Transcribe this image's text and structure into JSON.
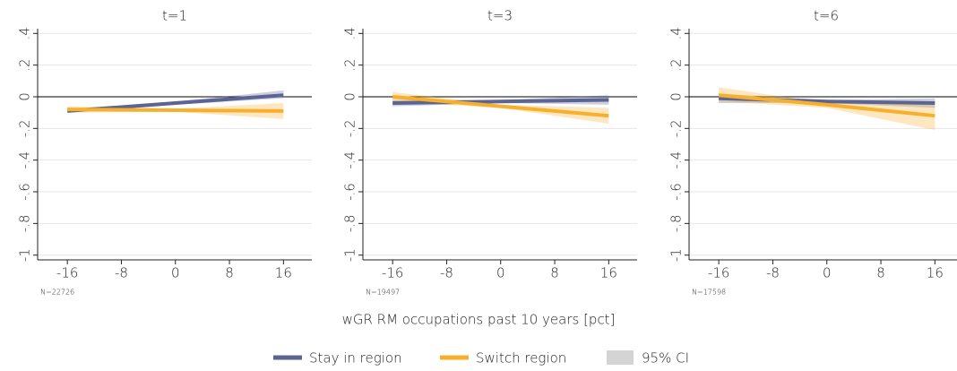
{
  "xlabel": "wGR RM occupations past 10 years [pct]",
  "ci_label": "95% CI",
  "ci_color": "#d4d4d4",
  "chart_data": [
    {
      "type": "line",
      "title": "t=1",
      "note": "N=22726",
      "x": [
        -16,
        0,
        16
      ],
      "xlim": [
        -20.4,
        20.2
      ],
      "xticks": [
        -16,
        -8,
        0,
        8,
        16
      ],
      "ylim": [
        -1.03,
        0.43
      ],
      "yticks": [
        {
          "value": -1,
          "label": "-1"
        },
        {
          "value": -0.8,
          "label": "-.8"
        },
        {
          "value": -0.6,
          "label": "-.6"
        },
        {
          "value": -0.4,
          "label": "-.4"
        },
        {
          "value": -0.2,
          "label": "-.2"
        },
        0,
        {
          "value": 0.2,
          "label": ".2"
        },
        {
          "value": 0.4,
          "label": ".4"
        }
      ],
      "grid": true,
      "zero_line": true,
      "series": [
        {
          "name": "Stay in region",
          "color": "#5b6493",
          "values": [
            -0.09,
            -0.04,
            0.01
          ],
          "ci_low": [
            -0.1,
            -0.05,
            -0.01
          ],
          "ci_high": [
            -0.08,
            -0.03,
            0.04
          ]
        },
        {
          "name": "Switch region",
          "color": "#f7b02e",
          "values": [
            -0.08,
            -0.085,
            -0.09
          ],
          "ci_low": [
            -0.1,
            -0.095,
            -0.14
          ],
          "ci_high": [
            -0.06,
            -0.075,
            -0.04
          ]
        }
      ]
    },
    {
      "type": "line",
      "title": "t=3",
      "note": "N=19497",
      "x": [
        -16,
        0,
        16
      ],
      "xlim": [
        -20.4,
        20.2
      ],
      "xticks": [
        -16,
        -8,
        0,
        8,
        16
      ],
      "ylim": [
        -1.03,
        0.43
      ],
      "yticks": [
        {
          "value": -1,
          "label": "-1"
        },
        {
          "value": -0.8,
          "label": "-.8"
        },
        {
          "value": -0.6,
          "label": "-.6"
        },
        {
          "value": -0.4,
          "label": "-.4"
        },
        {
          "value": -0.2,
          "label": "-.2"
        },
        0,
        {
          "value": 0.2,
          "label": ".2"
        },
        {
          "value": 0.4,
          "label": ".4"
        }
      ],
      "grid": true,
      "zero_line": true,
      "series": [
        {
          "name": "Stay in region",
          "color": "#5b6493",
          "values": [
            -0.04,
            -0.03,
            -0.02
          ],
          "ci_low": [
            -0.06,
            -0.04,
            -0.05
          ],
          "ci_high": [
            -0.02,
            -0.02,
            0.01
          ]
        },
        {
          "name": "Switch region",
          "color": "#f7b02e",
          "values": [
            0.0,
            -0.06,
            -0.12
          ],
          "ci_low": [
            -0.03,
            -0.07,
            -0.17
          ],
          "ci_high": [
            0.03,
            -0.05,
            -0.07
          ]
        }
      ]
    },
    {
      "type": "line",
      "title": "t=6",
      "note": "N=17598",
      "x": [
        -16,
        0,
        16
      ],
      "xlim": [
        -20.4,
        20.2
      ],
      "xticks": [
        -16,
        -8,
        0,
        8,
        16
      ],
      "ylim": [
        -1.03,
        0.43
      ],
      "yticks": [
        {
          "value": -1,
          "label": "-1"
        },
        {
          "value": -0.8,
          "label": "-.8"
        },
        {
          "value": -0.6,
          "label": "-.6"
        },
        {
          "value": -0.4,
          "label": "-.4"
        },
        {
          "value": -0.2,
          "label": "-.2"
        },
        0,
        {
          "value": 0.2,
          "label": ".2"
        },
        {
          "value": 0.4,
          "label": ".4"
        }
      ],
      "grid": true,
      "zero_line": true,
      "series": [
        {
          "name": "Stay in region",
          "color": "#5b6493",
          "values": [
            -0.01,
            -0.03,
            -0.04
          ],
          "ci_low": [
            -0.04,
            -0.04,
            -0.07
          ],
          "ci_high": [
            0.02,
            -0.02,
            -0.01
          ]
        },
        {
          "name": "Switch region",
          "color": "#f7b02e",
          "values": [
            0.01,
            -0.05,
            -0.12
          ],
          "ci_low": [
            -0.03,
            -0.07,
            -0.21
          ],
          "ci_high": [
            0.06,
            -0.04,
            -0.04
          ]
        }
      ]
    }
  ]
}
